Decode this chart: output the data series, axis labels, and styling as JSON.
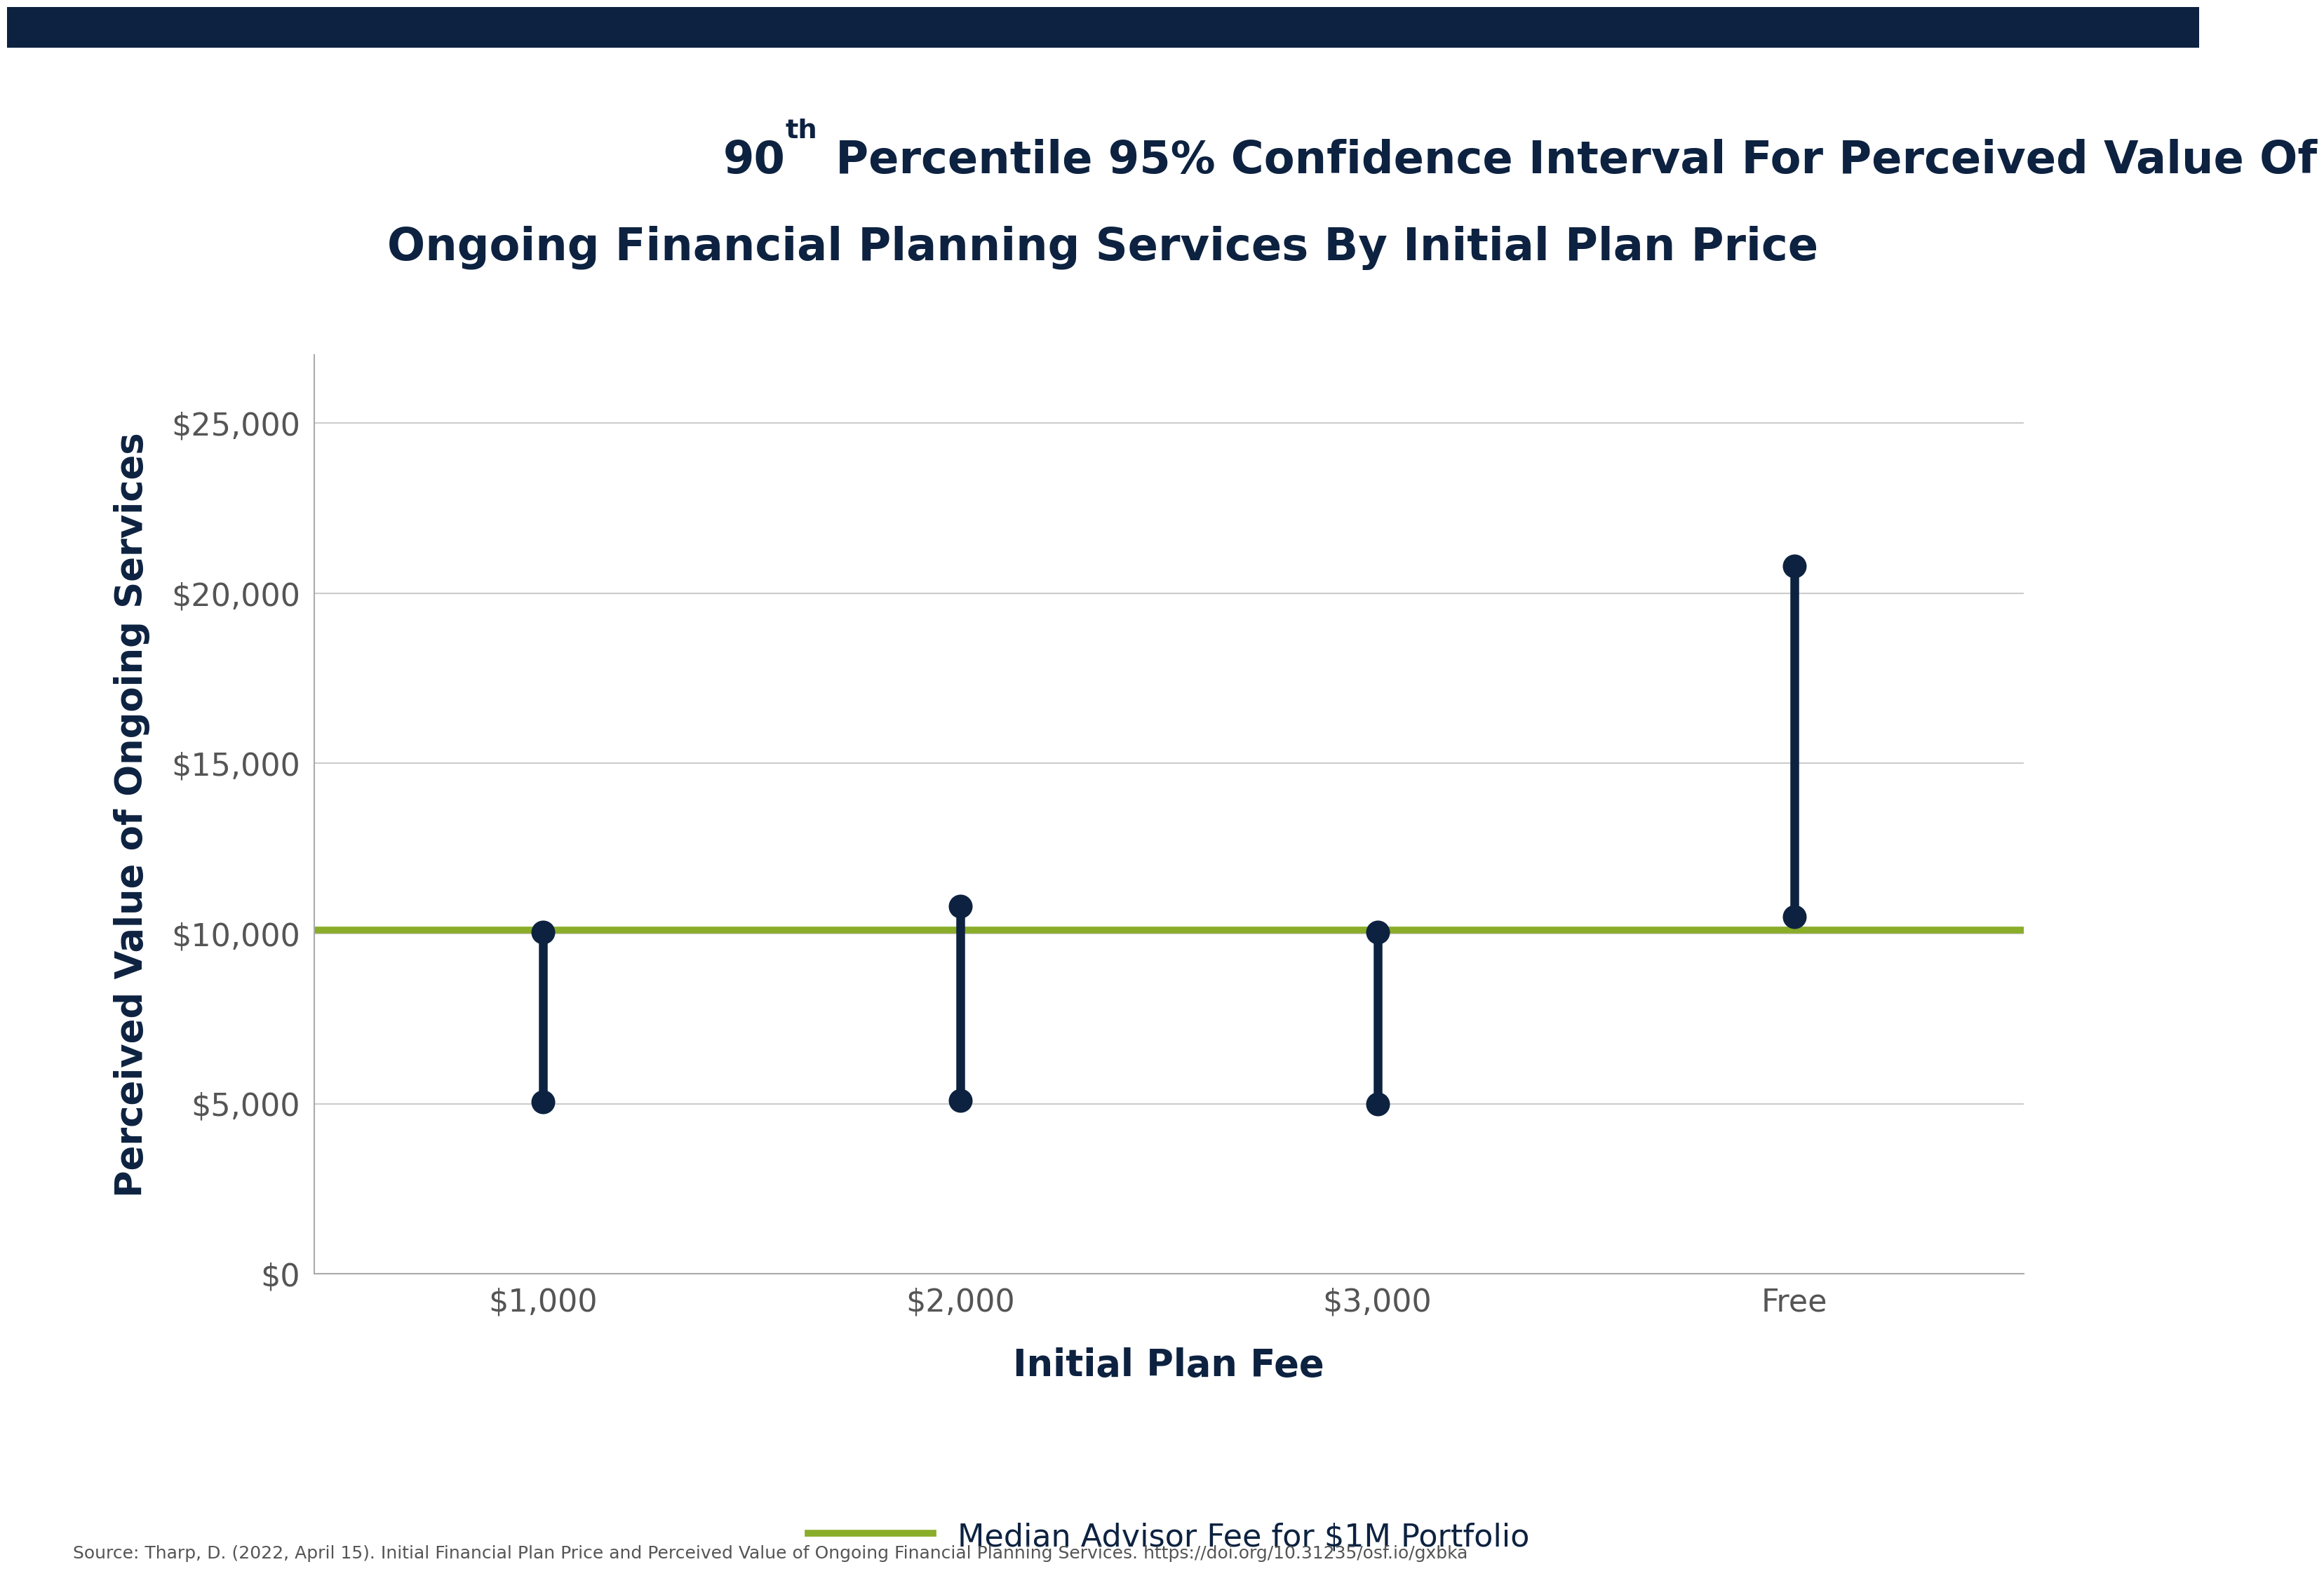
{
  "title_line1_prefix": "90",
  "title_superscript": "th",
  "title_line1_suffix": " Percentile 95% Confidence Interval For Perceived Value Of",
  "title_line2": "Ongoing Financial Planning Services By Initial Plan Price",
  "xlabel": "Initial Plan Fee",
  "ylabel": "Perceived Value of Ongoing Services",
  "categories": [
    "$1,000",
    "$2,000",
    "$3,000",
    "Free"
  ],
  "upper": [
    10050,
    10800,
    10050,
    20800
  ],
  "lower": [
    5050,
    5100,
    5000,
    10500
  ],
  "median_line": 10100,
  "ylim": [
    0,
    27000
  ],
  "yticks": [
    0,
    5000,
    10000,
    15000,
    20000,
    25000
  ],
  "ytick_labels": [
    "$0",
    "$5,000",
    "$10,000",
    "$15,000",
    "$20,000",
    "$25,000"
  ],
  "background_color": "#ffffff",
  "plot_bg_color": "#ffffff",
  "title_color": "#0d2240",
  "axis_label_color": "#0d2240",
  "tick_color": "#555555",
  "ci_line_color": "#0d2240",
  "ci_dot_color": "#0d2240",
  "median_line_color": "#8aad2a",
  "grid_color": "#cccccc",
  "legend_label": "Median Advisor Fee for $1M Portfolio",
  "source_text": "Source: Tharp, D. (2022, April 15). Initial Financial Plan Price and Perceived Value of Ongoing Financial Planning Services. https://doi.org/10.31235/osf.io/gxbka",
  "top_bar_color": "#0d2240"
}
